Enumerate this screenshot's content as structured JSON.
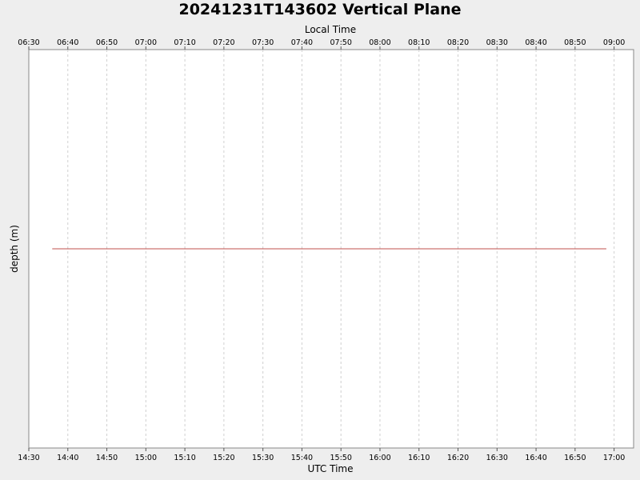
{
  "chart_data": {
    "type": "line",
    "title": "20241231T143602 Vertical Plane",
    "xlabel": "UTC Time",
    "x2label": "Local Time",
    "ylabel": "depth (m)",
    "xlim": [
      "14:30",
      "17:05"
    ],
    "x2lim": [
      "06:30",
      "09:05"
    ],
    "ylim": [
      0,
      1
    ],
    "grid": true,
    "x_ticks": [
      "14:30",
      "14:40",
      "14:50",
      "15:00",
      "15:10",
      "15:20",
      "15:30",
      "15:40",
      "15:50",
      "16:00",
      "16:10",
      "16:20",
      "16:30",
      "16:40",
      "16:50",
      "17:00"
    ],
    "x2_ticks": [
      "06:30",
      "06:40",
      "06:50",
      "07:00",
      "07:10",
      "07:20",
      "07:30",
      "07:40",
      "07:50",
      "08:00",
      "08:10",
      "08:20",
      "08:30",
      "08:40",
      "08:50",
      "09:00"
    ],
    "series": [
      {
        "color": "#c0504d",
        "x": [
          "14:36",
          "16:58"
        ],
        "y": [
          0.5,
          0.5
        ]
      }
    ]
  }
}
